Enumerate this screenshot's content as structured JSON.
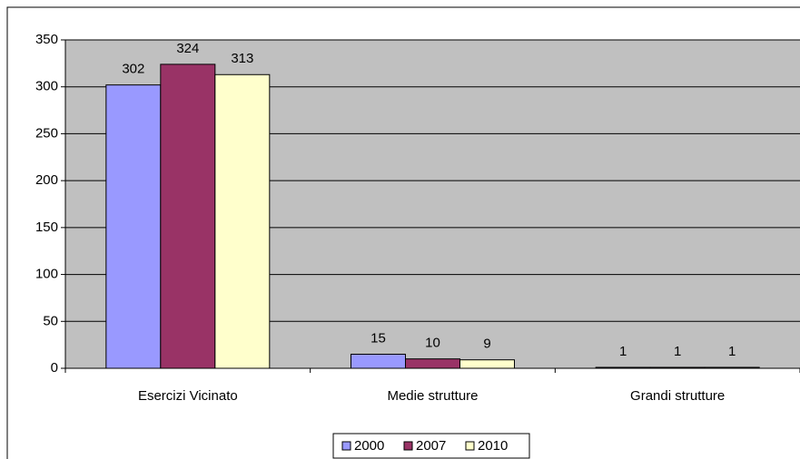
{
  "chart_data": {
    "type": "bar",
    "categories": [
      "Esercizi Vicinato",
      "Medie strutture",
      "Grandi strutture"
    ],
    "series": [
      {
        "name": "2000",
        "color": "#9999ff",
        "values": [
          302,
          15,
          1
        ]
      },
      {
        "name": "2007",
        "color": "#993366",
        "values": [
          324,
          10,
          1
        ]
      },
      {
        "name": "2010",
        "color": "#ffffcc",
        "values": [
          313,
          9,
          1
        ]
      }
    ],
    "ylim": [
      0,
      350
    ],
    "yticks": [
      0,
      50,
      100,
      150,
      200,
      250,
      300,
      350
    ],
    "grid": true,
    "legend": "bottom"
  }
}
